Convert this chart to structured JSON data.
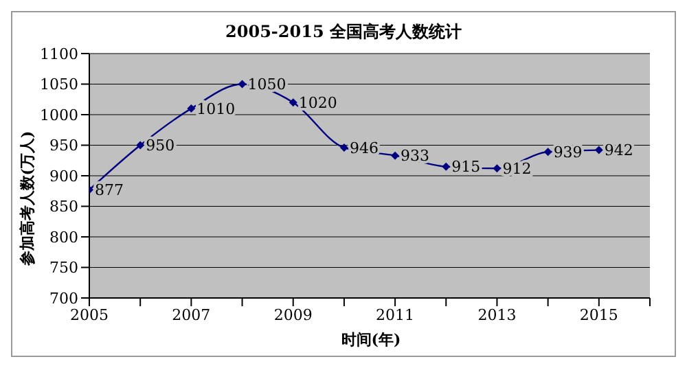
{
  "chart_data": {
    "type": "line",
    "title": "2005-2015 全国高考人数统计",
    "xlabel": "时间(年)",
    "ylabel": "参加高考人数(万人)",
    "x": [
      2005,
      2006,
      2007,
      2008,
      2009,
      2010,
      2011,
      2012,
      2013,
      2014,
      2015
    ],
    "series": [
      {
        "color": "#000080",
        "values": [
          877,
          950,
          1010,
          1050,
          1020,
          946,
          933,
          915,
          912,
          939,
          942
        ]
      }
    ],
    "xlim": [
      2005,
      2016
    ],
    "xticks": [
      2005,
      {
        "value": 2006,
        "label": null
      },
      2007,
      {
        "value": 2008,
        "label": null
      },
      2009,
      {
        "value": 2010,
        "label": null
      },
      2011,
      {
        "value": 2012,
        "label": null
      },
      2013,
      {
        "value": 2014,
        "label": null
      },
      2015,
      {
        "value": 2016,
        "label": null
      }
    ],
    "ylim": [
      700,
      1100
    ],
    "yticks": [
      700,
      750,
      800,
      850,
      900,
      950,
      1000,
      1050,
      1100
    ],
    "grid": "y",
    "marker": "diamond",
    "line_style": "solid",
    "data_labels": true,
    "legend": false
  }
}
